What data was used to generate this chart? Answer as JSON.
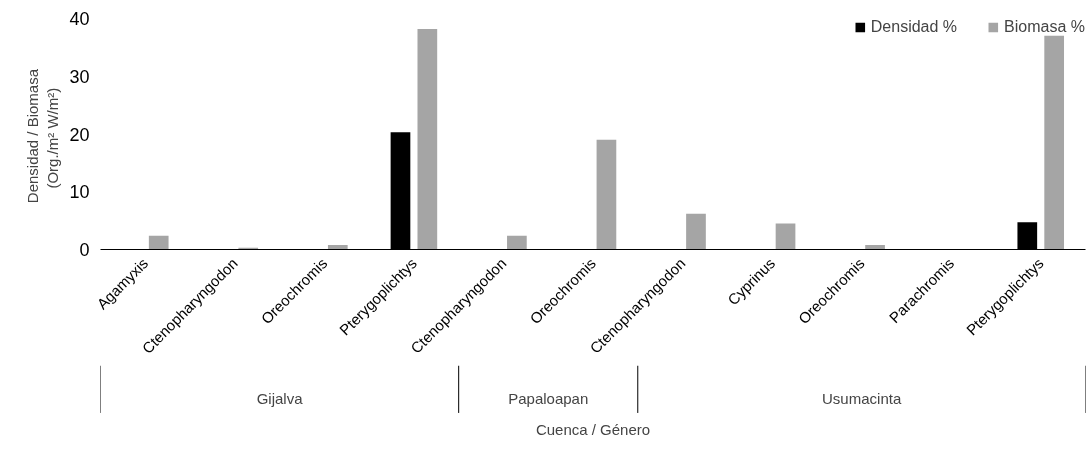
{
  "chart_data": {
    "type": "bar",
    "xlabel": "Cuenca / Género",
    "ylabel": "Densidad  / Biomasa\n(Org./m²   W/m²)",
    "categories": [
      "Agamyxis",
      "Ctenopharyngodon",
      "Oreochromis",
      "Pterygoplichtys",
      "Ctenopharyngodon",
      "Oreochromis",
      "Ctenopharyngodon",
      "Cyprinus",
      "Oreochromis",
      "Parachromis",
      "Pterygoplichtys"
    ],
    "series": [
      {
        "name": "Densidad %",
        "color": "#000000",
        "values": [
          0,
          0,
          0,
          20.3,
          0,
          0,
          0,
          0,
          0,
          0,
          4.7
        ]
      },
      {
        "name": "Biomasa %",
        "color": "#a5a5a5",
        "values": [
          2.4,
          0.3,
          0.8,
          38.2,
          2.4,
          19,
          6.2,
          4.5,
          0.8,
          0,
          37
        ]
      }
    ],
    "annotations": [
      "Gijalva",
      "Papaloapan",
      "Usumacinta"
    ],
    "ylim": [
      0,
      40
    ],
    "yticks": [
      0,
      10,
      20,
      30,
      40
    ],
    "grid": false,
    "legend": "top right"
  }
}
